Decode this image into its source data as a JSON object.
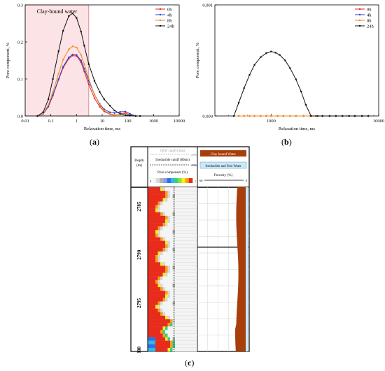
{
  "panel_labels": {
    "a": "a",
    "b": "b",
    "c": "c"
  },
  "chart_data": [
    {
      "type": "line",
      "panel": "a",
      "xlabel": "Relaxation time, ms",
      "ylabel": "Pore component, %",
      "xscale": "log",
      "xlim": [
        0.01,
        10000
      ],
      "ylim": [
        0,
        0.3
      ],
      "x_ticks": [
        "0.01",
        "0.1",
        "1",
        "10",
        "100",
        "1000",
        "10000"
      ],
      "y_ticks": [
        "0.0",
        "0.1",
        "0.2",
        "0.3"
      ],
      "shaded_region": {
        "label": "Clay-bound water",
        "x_range": [
          0.01,
          3
        ],
        "color": "#fbe3e6"
      },
      "legend": "top-right",
      "series": [
        {
          "name": "0h",
          "color": "#e8202a",
          "marker": "circle",
          "x": [
            0.03,
            0.05,
            0.08,
            0.12,
            0.2,
            0.3,
            0.5,
            0.7,
            1,
            1.5,
            2,
            3,
            5,
            8,
            12,
            20,
            30,
            50,
            80,
            120,
            200
          ],
          "y": [
            0,
            0.006,
            0.025,
            0.055,
            0.098,
            0.13,
            0.155,
            0.163,
            0.162,
            0.145,
            0.12,
            0.085,
            0.048,
            0.025,
            0.012,
            0.005,
            0.002,
            0.006,
            0.008,
            0.003,
            0
          ]
        },
        {
          "name": "4h",
          "color": "#2a3fd6",
          "marker": "circle",
          "x": [
            0.03,
            0.05,
            0.08,
            0.12,
            0.2,
            0.3,
            0.5,
            0.7,
            1,
            1.5,
            2,
            3,
            5,
            8,
            12,
            20,
            30,
            50,
            80,
            120,
            200
          ],
          "y": [
            0,
            0.006,
            0.026,
            0.057,
            0.1,
            0.133,
            0.158,
            0.166,
            0.165,
            0.15,
            0.128,
            0.095,
            0.058,
            0.032,
            0.018,
            0.01,
            0.008,
            0.011,
            0.012,
            0.006,
            0
          ]
        },
        {
          "name": "8h",
          "color": "#f08c1c",
          "marker": "circle",
          "x": [
            0.03,
            0.05,
            0.08,
            0.12,
            0.2,
            0.3,
            0.5,
            0.7,
            1,
            1.5,
            2,
            3,
            5,
            8,
            12,
            20,
            30,
            50,
            80,
            120,
            200
          ],
          "y": [
            0,
            0.007,
            0.03,
            0.065,
            0.115,
            0.152,
            0.18,
            0.188,
            0.185,
            0.165,
            0.14,
            0.1,
            0.058,
            0.03,
            0.015,
            0.006,
            0.003,
            0.005,
            0.006,
            0.002,
            0
          ]
        },
        {
          "name": "24h",
          "color": "#111111",
          "marker": "square",
          "x": [
            0.03,
            0.05,
            0.08,
            0.12,
            0.2,
            0.3,
            0.5,
            0.7,
            1,
            1.5,
            2,
            3,
            5,
            8,
            12,
            20,
            30,
            50,
            80,
            120,
            200,
            300
          ],
          "y": [
            0,
            0.01,
            0.045,
            0.1,
            0.175,
            0.23,
            0.27,
            0.277,
            0.265,
            0.228,
            0.19,
            0.14,
            0.095,
            0.065,
            0.045,
            0.028,
            0.015,
            0.006,
            0.002,
            0.001,
            0,
            0
          ]
        }
      ]
    },
    {
      "type": "line",
      "panel": "b",
      "xlabel": "Relaxation time, ms",
      "ylabel": "Pore component, %",
      "xscale": "log",
      "xlim": [
        300,
        10000
      ],
      "ylim": [
        0,
        0.001
      ],
      "x_ticks": [
        "1000",
        "10000"
      ],
      "y_ticks": [
        "0.000",
        "0.001"
      ],
      "legend": "top-right",
      "series": [
        {
          "name": "0h",
          "color": "#e8202a",
          "marker": "circle",
          "x": [
            450,
            500,
            560,
            630,
            700,
            800,
            900,
            1000,
            1150,
            1300,
            1500,
            1700,
            2000,
            2300,
            2600,
            3000,
            3500,
            4000,
            4600,
            5300,
            6000,
            7000,
            8000
          ],
          "y": [
            0,
            0,
            0,
            0,
            0,
            0,
            0,
            0,
            0,
            0,
            0,
            0,
            0,
            0,
            0,
            0,
            0,
            0,
            0,
            0,
            0,
            0,
            0
          ]
        },
        {
          "name": "4h",
          "color": "#2a3fd6",
          "marker": "circle",
          "x": [
            450,
            500,
            560,
            630,
            700,
            800,
            900,
            1000,
            1150,
            1300,
            1500,
            1700,
            2000,
            2300,
            2600,
            3000,
            3500,
            4000,
            4600,
            5300,
            6000,
            7000,
            8000
          ],
          "y": [
            0,
            0,
            0,
            0,
            0,
            0,
            0,
            0,
            0,
            0,
            0,
            0,
            0,
            0,
            0,
            0,
            0,
            0,
            0,
            0,
            0,
            0,
            0
          ]
        },
        {
          "name": "8h",
          "color": "#f08c1c",
          "marker": "circle",
          "x": [
            450,
            500,
            560,
            630,
            700,
            800,
            900,
            1000,
            1150,
            1300,
            1500,
            1700,
            2000,
            2300,
            2600,
            3000,
            3500,
            4000,
            4600,
            5300,
            6000,
            7000,
            8000
          ],
          "y": [
            0,
            0,
            0,
            0,
            0,
            0,
            0,
            0,
            0,
            0,
            0,
            0,
            0,
            0,
            0,
            0,
            0,
            0,
            0,
            0,
            0,
            0,
            0
          ]
        },
        {
          "name": "24h",
          "color": "#111111",
          "marker": "square",
          "x": [
            450,
            500,
            560,
            630,
            700,
            800,
            900,
            1000,
            1100,
            1200,
            1350,
            1500,
            1700,
            1900,
            2100,
            2350,
            2700,
            3000,
            3500,
            4000,
            4600,
            5300,
            6000,
            7000,
            8000
          ],
          "y": [
            0,
            0.00012,
            0.00025,
            0.00037,
            0.00046,
            0.00053,
            0.000565,
            0.00058,
            0.00057,
            0.00055,
            0.0005,
            0.00043,
            0.00033,
            0.00022,
            0.0001,
            0,
            0,
            0,
            0,
            0,
            0,
            0,
            0,
            0,
            0
          ]
        }
      ]
    }
  ],
  "log_panel": {
    "panel": "c",
    "depth_header": "Depth (m)",
    "depth_ticks": [
      "2785",
      "2790",
      "2795",
      "2800"
    ],
    "depth_range": [
      2783,
      2800
    ],
    "track1": {
      "cbw_label": "CBW cutoff (3ms)",
      "cbw_value": "4096",
      "irr_label": "Irreducible cutoff (80ms)",
      "irr_value": "4096",
      "scale_title": "Pore component (%)",
      "scale_min": "0",
      "scale_max": "2",
      "colors": [
        "#f4f4f4",
        "#d8d8d8",
        "#b0b0b0",
        "#8c9cf0",
        "#2f6fe6",
        "#2fb8e8",
        "#33d088",
        "#8ae23c",
        "#f2f21e",
        "#f6a01c",
        "#e82c1c"
      ]
    },
    "track2": {
      "cbw_label": "Clay bound Water",
      "cbw_color": "#a63f0c",
      "free_label": "Irreducible and Free Water",
      "free_color": "#cde8f8",
      "porosity_label": "Porosity (%)",
      "porosity_left": "60",
      "porosity_right": "0"
    }
  }
}
